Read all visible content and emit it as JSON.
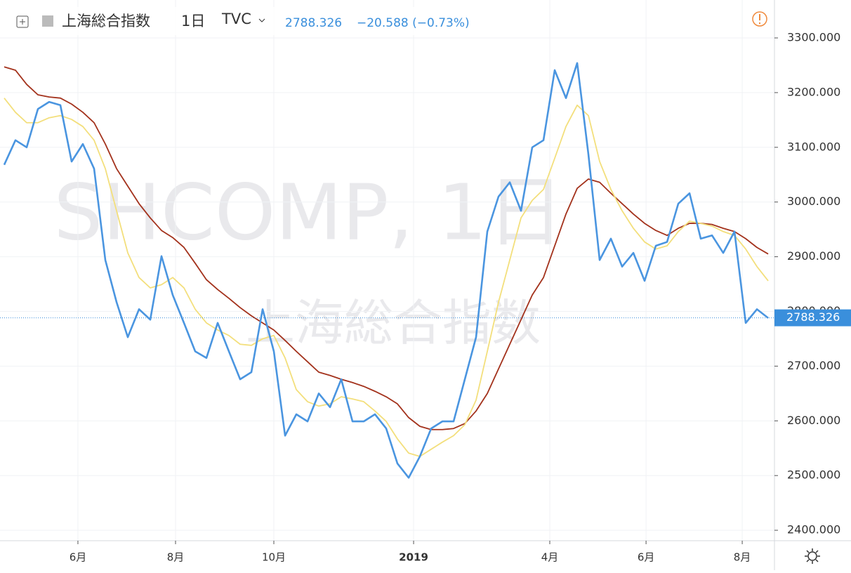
{
  "header": {
    "symbol": "上海総合指数",
    "interval": "1日",
    "exchange": "TVC",
    "last": "2788.326",
    "change": "−20.588 (−0.73%)"
  },
  "watermark": {
    "line1": "SHCOMP, 1日",
    "line2": "上海総合指数"
  },
  "chart_data": {
    "type": "line",
    "xlim": [
      -0.375,
      68.56
    ],
    "xticks": [
      {
        "value": 6.56,
        "label": "6月"
      },
      {
        "value": 15.25,
        "label": "8月"
      },
      {
        "value": 24,
        "label": "10月"
      },
      {
        "value": 36.44,
        "label": "2019"
      },
      {
        "value": 48.56,
        "label": "4月"
      },
      {
        "value": 57.13,
        "label": "6月"
      },
      {
        "value": 65.69,
        "label": "8月"
      }
    ],
    "ylim": [
      2380.9,
      3369.3
    ],
    "yticks": [
      {
        "value": 2400,
        "label": "2400.000"
      },
      {
        "value": 2500,
        "label": "2500.000"
      },
      {
        "value": 2600,
        "label": "2600.000"
      },
      {
        "value": 2700,
        "label": "2700.000"
      },
      {
        "value": 2800,
        "label": "2800.000"
      },
      {
        "value": 2900,
        "label": "2900.000"
      },
      {
        "value": 3000,
        "label": "3000.000"
      },
      {
        "value": 3100,
        "label": "3100.000"
      },
      {
        "value": 3200,
        "label": "3200.000"
      },
      {
        "value": 3300,
        "label": "3300.000"
      }
    ],
    "grid": true,
    "last_value": 2788.326,
    "last_label": "2788.326",
    "series": [
      {
        "color": "#a3321c",
        "values": [
          3247,
          3241,
          3215,
          3196,
          3192,
          3190,
          3179,
          3164,
          3145,
          3106,
          3061,
          3029,
          2997,
          2971,
          2948,
          2935,
          2917,
          2888,
          2858,
          2840,
          2824,
          2807,
          2792,
          2779,
          2766,
          2747,
          2727,
          2708,
          2689,
          2683,
          2676,
          2670,
          2663,
          2654,
          2644,
          2631,
          2606,
          2590,
          2584,
          2584,
          2586,
          2595,
          2618,
          2650,
          2695,
          2740,
          2785,
          2830,
          2862,
          2920,
          2978,
          3025,
          3042,
          3036,
          3016,
          2997,
          2978,
          2961,
          2948,
          2939,
          2952,
          2961,
          2961,
          2959,
          2952,
          2946,
          2933,
          2917,
          2905
        ]
      },
      {
        "color": "#f3df7c",
        "values": [
          3190,
          3164,
          3145,
          3145,
          3154,
          3158,
          3151,
          3138,
          3113,
          3061,
          2984,
          2907,
          2862,
          2843,
          2849,
          2862,
          2843,
          2804,
          2779,
          2766,
          2756,
          2740,
          2738,
          2750,
          2756,
          2715,
          2657,
          2635,
          2627,
          2631,
          2644,
          2640,
          2635,
          2618,
          2599,
          2567,
          2541,
          2535,
          2548,
          2561,
          2573,
          2593,
          2638,
          2727,
          2817,
          2894,
          2971,
          3003,
          3023,
          3080,
          3138,
          3177,
          3158,
          3074,
          3023,
          2984,
          2952,
          2927,
          2914,
          2920,
          2946,
          2965,
          2961,
          2956,
          2946,
          2939,
          2914,
          2882,
          2856
        ]
      },
      {
        "name": "上海総合指数",
        "color": "#4a95e0",
        "values": [
          3068,
          3113,
          3100,
          3170,
          3183,
          3177,
          3074,
          3106,
          3061,
          2894,
          2817,
          2753,
          2804,
          2785,
          2901,
          2830,
          2779,
          2727,
          2715,
          2779,
          2727,
          2676,
          2689,
          2804,
          2727,
          2573,
          2612,
          2599,
          2650,
          2625,
          2676,
          2599,
          2599,
          2612,
          2586,
          2522,
          2496,
          2535,
          2586,
          2599,
          2599,
          2676,
          2753,
          2946,
          3010,
          3036,
          2984,
          3100,
          3113,
          3241,
          3190,
          3254,
          3087,
          2894,
          2933,
          2882,
          2907,
          2856,
          2920,
          2927,
          2997,
          3016,
          2933,
          2939,
          2907,
          2946,
          2779,
          2804,
          2788
        ]
      }
    ]
  }
}
